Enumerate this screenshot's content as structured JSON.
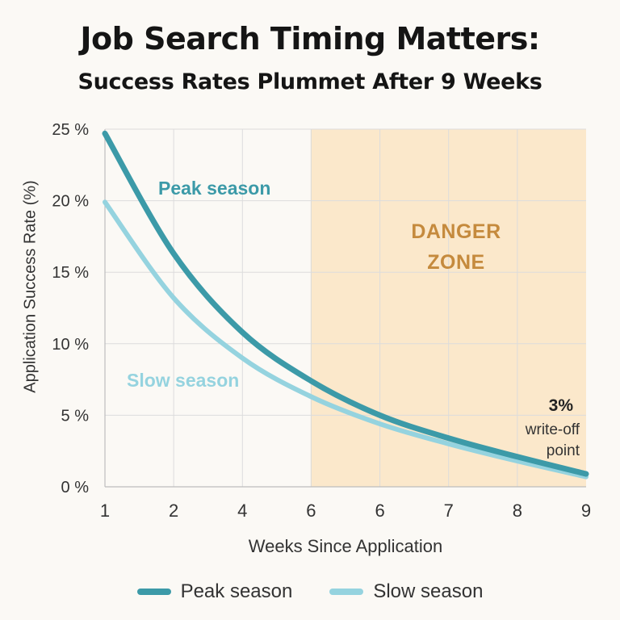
{
  "title": "Job Search Timing Matters:",
  "subtitle": "Success Rates Plummet After 9 Weeks",
  "colors": {
    "peak": "#3c9aa8",
    "slow": "#95d3df",
    "danger_fill": "#fbe8cb",
    "danger_text": "#c58a3d",
    "grid": "#dcdcdc"
  },
  "annotations": {
    "danger_line1": "DANGER",
    "danger_line2": "ZONE",
    "writeoff_value": "3%",
    "writeoff_line1": "write-off",
    "writeoff_line2": "point"
  },
  "chart_data": {
    "type": "line",
    "xlabel": "Weeks Since Application",
    "ylabel": "Application Success Rate (%)",
    "x_tick_labels": [
      "1",
      "2",
      "4",
      "6",
      "6",
      "7",
      "8",
      "9"
    ],
    "y_ticks": [
      0,
      5,
      10,
      15,
      20,
      25
    ],
    "y_tick_labels": [
      "0 %",
      "5 %",
      "10 %",
      "15 %",
      "20 %",
      "25 %"
    ],
    "ylim": [
      0,
      25
    ],
    "grid": true,
    "legend": "bottom",
    "danger_zone_start_tick": 3,
    "series": [
      {
        "name": "Peak season",
        "values": [
          24.7,
          16.3,
          10.8,
          7.4,
          5.0,
          3.4,
          2.1,
          0.9
        ]
      },
      {
        "name": "Slow season",
        "values": [
          19.9,
          13.2,
          9.0,
          6.3,
          4.4,
          3.0,
          1.8,
          0.7
        ]
      }
    ]
  }
}
